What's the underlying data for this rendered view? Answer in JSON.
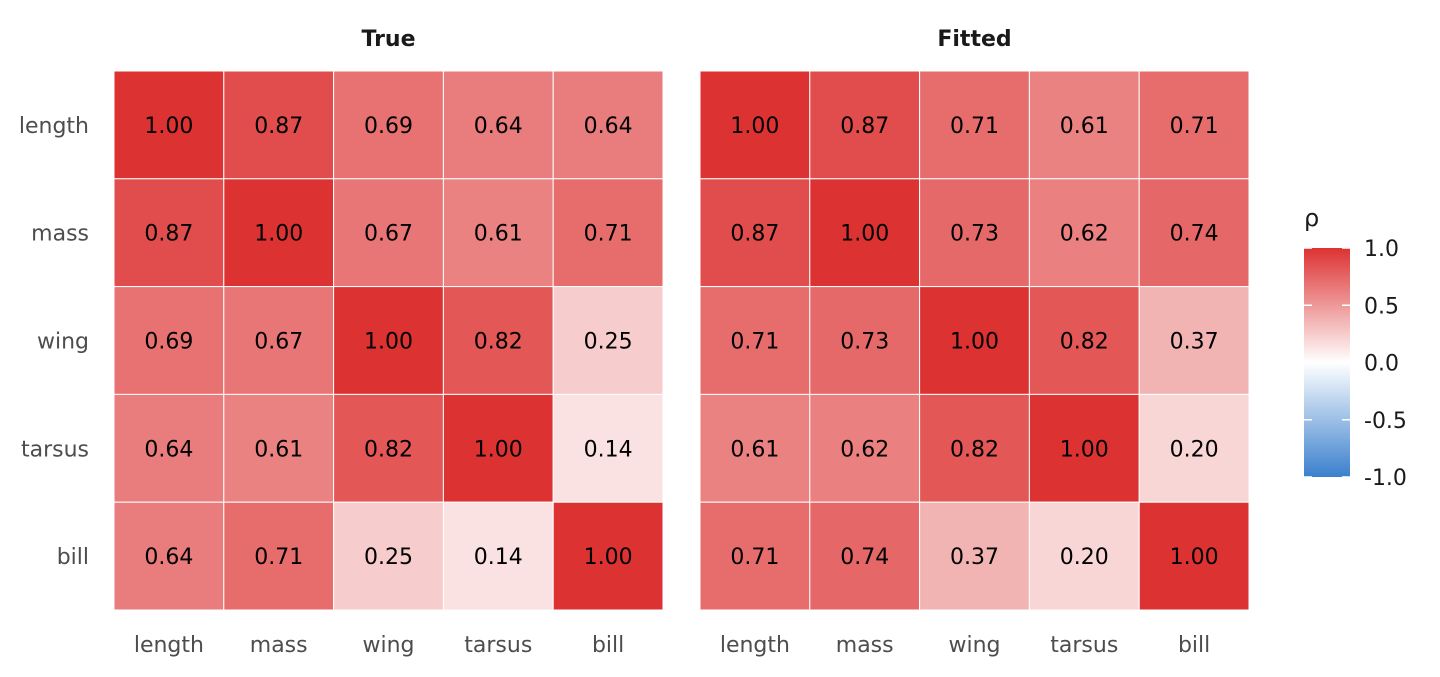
{
  "chart_data": {
    "type": "heatmap",
    "variables": [
      "length",
      "mass",
      "wing",
      "tarsus",
      "bill"
    ],
    "panels": [
      {
        "title": "True",
        "matrix": [
          [
            1.0,
            0.87,
            0.69,
            0.64,
            0.64
          ],
          [
            0.87,
            1.0,
            0.67,
            0.61,
            0.71
          ],
          [
            0.69,
            0.67,
            1.0,
            0.82,
            0.25
          ],
          [
            0.64,
            0.61,
            0.82,
            1.0,
            0.14
          ],
          [
            0.64,
            0.71,
            0.25,
            0.14,
            1.0
          ]
        ]
      },
      {
        "title": "Fitted",
        "matrix": [
          [
            1.0,
            0.87,
            0.71,
            0.61,
            0.71
          ],
          [
            0.87,
            1.0,
            0.73,
            0.62,
            0.74
          ],
          [
            0.71,
            0.73,
            1.0,
            0.82,
            0.37
          ],
          [
            0.61,
            0.62,
            0.82,
            1.0,
            0.2
          ],
          [
            0.71,
            0.74,
            0.37,
            0.2,
            1.0
          ]
        ]
      }
    ],
    "value_format_decimals": 2,
    "legend": {
      "title": "ρ",
      "position": "right",
      "range": [
        -1.0,
        1.0
      ],
      "ticks": [
        "1.0",
        "0.5",
        "0.0",
        "-0.5",
        "-1.0"
      ],
      "tick_values": [
        1.0,
        0.5,
        0.0,
        -0.5,
        -1.0
      ],
      "colors": {
        "high": "#DD3232",
        "mid": "#FFFFFF",
        "low": "#3A80CD"
      }
    },
    "grid": false
  }
}
